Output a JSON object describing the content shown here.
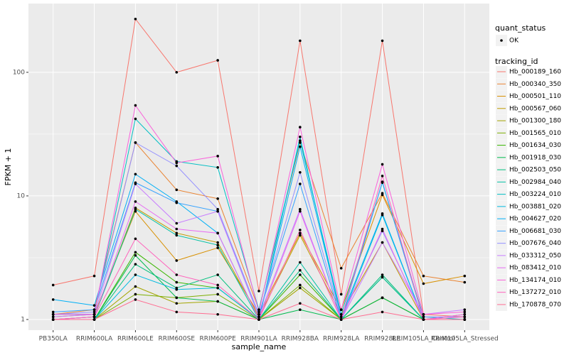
{
  "chart_data": {
    "type": "line",
    "log_y": true,
    "grid": true,
    "x_label": "sample_name",
    "y_label": "FPKM + 1",
    "categories": [
      "PB350LA",
      "RRIM600LA",
      "RRIM600LE",
      "RRIM600SE",
      "RRIM600PE",
      "RRIM901LA",
      "RRIM928BA",
      "RRIM928LA",
      "RRIM928LE",
      "RRIM105LA_Control",
      "RRIM105LA_Stressed"
    ],
    "ylim": [
      0.82,
      360
    ],
    "yticks": [
      1,
      10,
      100
    ],
    "point_legend_title": "quant_status",
    "point_legend_label": "OK",
    "point_color": "#000000",
    "legend_title": "tracking_id",
    "legend_position": "right",
    "series": [
      {
        "name": "Hb_000189_160",
        "color": "#F8766D",
        "values": [
          1.9,
          2.25,
          270,
          100,
          125,
          1.7,
          180,
          1.6,
          180,
          1.1,
          1.05
        ]
      },
      {
        "name": "Hb_000340_350",
        "color": "#EA8331",
        "values": [
          1.1,
          1.2,
          27,
          11.2,
          9.5,
          1.2,
          27,
          2.6,
          10.5,
          2.25,
          2.0
        ]
      },
      {
        "name": "Hb_000501_110",
        "color": "#D89000",
        "values": [
          1.05,
          1.1,
          7.5,
          3.0,
          3.8,
          1.1,
          5.0,
          1.2,
          10.2,
          1.95,
          2.25
        ]
      },
      {
        "name": "Hb_000567_060",
        "color": "#C09B00",
        "values": [
          1.0,
          1.05,
          8.0,
          5.0,
          4.2,
          1.05,
          4.8,
          1.1,
          4.2,
          1.0,
          1.1
        ]
      },
      {
        "name": "Hb_001300_180",
        "color": "#A3A500",
        "values": [
          1.0,
          1.0,
          1.85,
          1.35,
          1.4,
          1.0,
          1.8,
          1.0,
          1.5,
          1.0,
          1.0
        ]
      },
      {
        "name": "Hb_001565_010",
        "color": "#7CAE00",
        "values": [
          1.0,
          1.0,
          1.6,
          1.5,
          1.6,
          1.0,
          1.9,
          1.0,
          1.5,
          1.0,
          1.0
        ]
      },
      {
        "name": "Hb_001634_030",
        "color": "#39B600",
        "values": [
          1.0,
          1.0,
          3.5,
          2.0,
          1.8,
          1.0,
          2.3,
          1.0,
          2.2,
          1.0,
          1.0
        ]
      },
      {
        "name": "Hb_001918_030",
        "color": "#00BB4E",
        "values": [
          1.0,
          1.0,
          3.3,
          1.5,
          1.4,
          1.0,
          1.2,
          1.0,
          1.5,
          1.0,
          1.0
        ]
      },
      {
        "name": "Hb_002503_050",
        "color": "#00BF7D",
        "values": [
          1.0,
          1.0,
          2.8,
          1.8,
          2.3,
          1.0,
          2.5,
          1.0,
          2.3,
          1.0,
          1.0
        ]
      },
      {
        "name": "Hb_002984_040",
        "color": "#00C1A3",
        "values": [
          1.0,
          1.05,
          7.8,
          4.8,
          4.0,
          1.0,
          2.9,
          1.0,
          2.2,
          1.0,
          1.0
        ]
      },
      {
        "name": "Hb_003224_010",
        "color": "#00BFC4",
        "values": [
          1.1,
          1.1,
          42,
          19,
          17,
          1.2,
          28,
          1.1,
          12.8,
          1.05,
          1.0
        ]
      },
      {
        "name": "Hb_003881_020",
        "color": "#00BAE0",
        "values": [
          1.0,
          1.0,
          2.3,
          1.75,
          1.8,
          1.0,
          30,
          1.0,
          7.0,
          1.0,
          1.0
        ]
      },
      {
        "name": "Hb_004627_020",
        "color": "#00B0F6",
        "values": [
          1.45,
          1.3,
          15,
          9.0,
          5.0,
          1.0,
          25,
          1.05,
          7.2,
          1.0,
          1.0
        ]
      },
      {
        "name": "Hb_006681_030",
        "color": "#35A2FF",
        "values": [
          1.15,
          1.2,
          12.8,
          8.8,
          7.5,
          1.1,
          12.5,
          1.0,
          13,
          1.0,
          1.0
        ]
      },
      {
        "name": "Hb_007676_040",
        "color": "#9590FF",
        "values": [
          1.1,
          1.15,
          27,
          17.5,
          7.8,
          1.1,
          15.5,
          1.05,
          5.2,
          1.05,
          1.05
        ]
      },
      {
        "name": "Hb_033312_050",
        "color": "#C77CFF",
        "values": [
          1.05,
          1.1,
          12.5,
          6.0,
          7.5,
          1.05,
          7.8,
          1.0,
          4.2,
          1.1,
          1.2
        ]
      },
      {
        "name": "Hb_083412_010",
        "color": "#E76BF3",
        "values": [
          1.0,
          1.05,
          9.0,
          5.4,
          5.0,
          1.0,
          7.5,
          1.0,
          5.4,
          1.0,
          1.1
        ]
      },
      {
        "name": "Hb_134174_010",
        "color": "#FA62DB",
        "values": [
          1.1,
          1.1,
          54,
          18.5,
          21,
          1.15,
          36,
          1.2,
          18,
          1.1,
          1.15
        ]
      },
      {
        "name": "Hb_137272_010",
        "color": "#FF62BC",
        "values": [
          1.0,
          1.05,
          4.5,
          2.3,
          1.9,
          1.0,
          5.3,
          1.0,
          14.5,
          1.0,
          1.05
        ]
      },
      {
        "name": "Hb_170878_070",
        "color": "#FF6C91",
        "values": [
          1.0,
          1.0,
          1.45,
          1.15,
          1.1,
          1.0,
          1.35,
          1.0,
          1.15,
          1.0,
          1.0
        ]
      }
    ]
  }
}
